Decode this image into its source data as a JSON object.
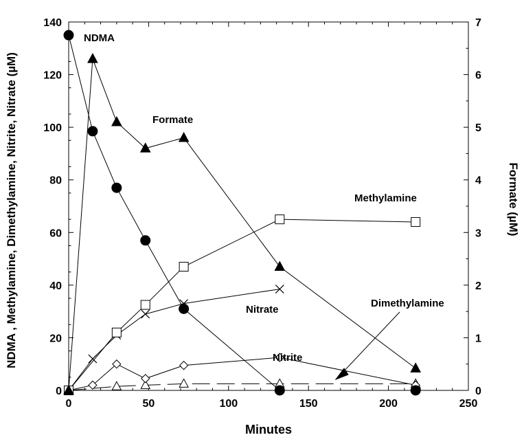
{
  "chart_data": {
    "type": "line",
    "xlabel": "Minutes",
    "ylabel_left": "NDMA , Methylamine, Dimethylamine, Nitrite, Nitrate (µM)",
    "ylabel_right": "Formate (µM)",
    "xlim": [
      0,
      250
    ],
    "ylim_left": [
      0,
      140
    ],
    "ylim_right": [
      0,
      7
    ],
    "x_ticks": [
      0,
      50,
      100,
      150,
      200,
      250
    ],
    "y_left_ticks": [
      0,
      20,
      40,
      60,
      80,
      100,
      120,
      140
    ],
    "y_right_ticks": [
      0,
      1,
      2,
      3,
      4,
      5,
      6,
      7
    ],
    "grid": false,
    "series": [
      {
        "name": "NDMA",
        "axis": "left",
        "marker": "circle-filled",
        "line": "solid",
        "x": [
          0,
          15,
          30,
          48,
          72,
          132,
          217
        ],
        "y": [
          135,
          98.5,
          77,
          57,
          31,
          0,
          0
        ]
      },
      {
        "name": "Formate",
        "axis": "right",
        "marker": "triangle-filled",
        "line": "solid",
        "x": [
          0,
          15,
          30,
          48,
          72,
          132,
          217
        ],
        "y": [
          0,
          6.3,
          5.1,
          4.6,
          4.8,
          2.35,
          0.42
        ]
      },
      {
        "name": "Methylamine",
        "axis": "left",
        "marker": "square-open",
        "line": "solid",
        "x": [
          0,
          30,
          48,
          72,
          132,
          217
        ],
        "y": [
          0,
          22,
          32.5,
          47,
          65,
          64
        ]
      },
      {
        "name": "Nitrate",
        "axis": "left",
        "marker": "x",
        "line": "solid",
        "x": [
          0,
          15,
          30,
          48,
          72,
          132
        ],
        "y": [
          0,
          12,
          21,
          29,
          33,
          38.5
        ]
      },
      {
        "name": "Nitrite",
        "axis": "left",
        "marker": "diamond-open",
        "line": "solid",
        "x": [
          0,
          15,
          30,
          48,
          72,
          132,
          217
        ],
        "y": [
          0,
          2,
          10,
          4.5,
          9.5,
          12.5,
          2
        ]
      },
      {
        "name": "Dimethylamine",
        "axis": "left",
        "marker": "triangle-open",
        "line": "dashed",
        "x": [
          0,
          30,
          48,
          72,
          132,
          217
        ],
        "y": [
          0,
          1.5,
          2,
          2.5,
          2.5,
          2.5
        ]
      }
    ],
    "annotations": [
      {
        "text": "NDMA"
      },
      {
        "text": "Formate"
      },
      {
        "text": "Methylamine"
      },
      {
        "text": "Nitrate"
      },
      {
        "text": "Nitrite"
      },
      {
        "text": "Dimethylamine"
      }
    ]
  }
}
